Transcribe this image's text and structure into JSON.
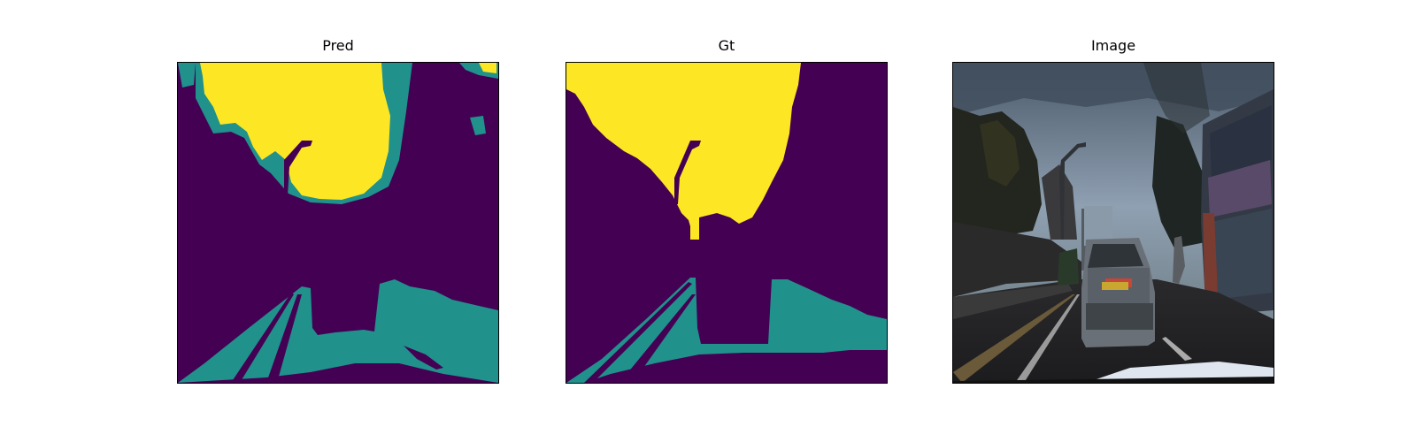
{
  "panels": [
    {
      "title": "Pred"
    },
    {
      "title": "Gt"
    },
    {
      "title": "Image"
    }
  ],
  "colors": {
    "background_class": "#440154",
    "road_class": "#21918c",
    "sky_class": "#fde725"
  }
}
